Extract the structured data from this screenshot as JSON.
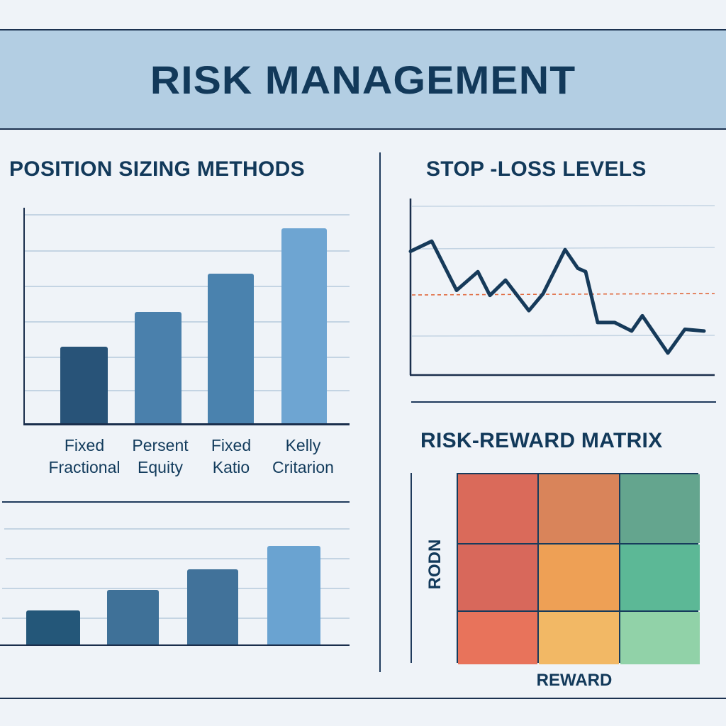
{
  "header": {
    "title": "RISK MANAGEMENT"
  },
  "colors": {
    "background": "#eff3f8",
    "header_band": "#b3cee3",
    "title_text": "#12395a",
    "line": "#163a5a",
    "stop_line": "#e0683c"
  },
  "sections": {
    "position_sizing": {
      "title": "POSITION SIZING METHODS"
    },
    "stop_loss": {
      "title": "STOP -LOSS LEVELS"
    },
    "risk_reward": {
      "title": "RISK-REWARD MATRIX",
      "x_label": "REWARD",
      "y_label": "RODN"
    }
  },
  "chart_data": [
    {
      "type": "bar",
      "title": "POSITION SIZING METHODS",
      "categories": [
        "Fixed Fractional",
        "Persent Equity",
        "Fixed Katio",
        "Kelly Critarion"
      ],
      "category_lines": [
        [
          "Fixed",
          "Fractional"
        ],
        [
          "Persent",
          "Equity"
        ],
        [
          "Fixed",
          "Katio"
        ],
        [
          "Kelly",
          "Critarion"
        ]
      ],
      "values": [
        2.2,
        3.2,
        4.3,
        5.6
      ],
      "bar_colors": [
        "#285378",
        "#4a80ac",
        "#4a82ae",
        "#6ea5d2"
      ],
      "xlabel": "",
      "ylabel": "",
      "ylim": [
        0,
        6
      ],
      "grid": true
    },
    {
      "type": "bar",
      "title": "",
      "categories": [
        "",
        "",
        "",
        ""
      ],
      "values": [
        1.2,
        1.9,
        2.6,
        3.4
      ],
      "bar_colors": [
        "#245779",
        "#3f7198",
        "#41729a",
        "#6aa3d1"
      ],
      "xlabel": "",
      "ylabel": "",
      "ylim": [
        0,
        4
      ],
      "grid": true
    },
    {
      "type": "line",
      "title": "STOP -LOSS LEVELS",
      "x": [
        0,
        1,
        2,
        3,
        4,
        5,
        6,
        7,
        8,
        9,
        10,
        11,
        12,
        13,
        14,
        15,
        16,
        17
      ],
      "values": [
        73,
        79,
        50,
        61,
        47,
        56,
        38,
        48,
        74,
        63,
        61,
        31,
        31,
        26,
        35,
        13,
        27,
        26
      ],
      "stop_loss_level": 45,
      "ylim": [
        0,
        100
      ],
      "grid": true,
      "xlabel": "",
      "ylabel": ""
    },
    {
      "type": "heatmap",
      "title": "RISK-REWARD MATRIX",
      "xlabel": "REWARD",
      "ylabel": "RODN",
      "rows": 3,
      "cols": 3,
      "colors": [
        [
          "#da6a5a",
          "#d9845a",
          "#64a58e"
        ],
        [
          "#d8685b",
          "#eea055",
          "#5cb896"
        ],
        [
          "#e8735b",
          "#f2b865",
          "#91d2a8"
        ]
      ]
    }
  ]
}
